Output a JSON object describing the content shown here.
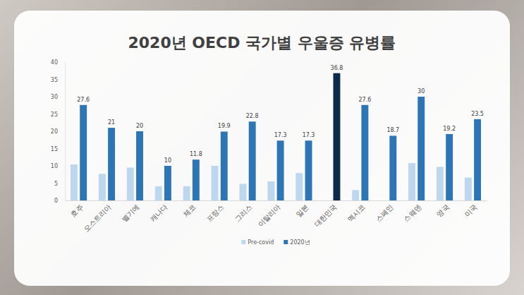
{
  "chart_data": {
    "type": "bar",
    "title": "2020년 OECD 국가별 우울증 유병률",
    "categories": [
      "호주",
      "오스트리아",
      "벨기에",
      "캐나다",
      "체코",
      "프랑스",
      "그리스",
      "이탈리아",
      "일본",
      "대한민국",
      "멕시코",
      "스페인",
      "스웨덴",
      "영국",
      "미국"
    ],
    "series": [
      {
        "name": "Pre-covid",
        "color": "#bdd7ee",
        "values": [
          10.4,
          7.7,
          9.5,
          4.1,
          4.1,
          10,
          4.8,
          5.5,
          7.9,
          null,
          3.0,
          null,
          10.8,
          9.7,
          6.6
        ]
      },
      {
        "name": "2020년",
        "color": "#2e75b6",
        "data_labels": true,
        "colors": [
          "#2e75b6",
          "#2e75b6",
          "#2e75b6",
          "#2e75b6",
          "#2e75b6",
          "#2e75b6",
          "#2e75b6",
          "#2e75b6",
          "#2e75b6",
          "#0d2a4a",
          "#2e75b6",
          "#2e75b6",
          "#2e75b6",
          "#2e75b6",
          "#2e75b6"
        ],
        "values": [
          27.6,
          21,
          20,
          10,
          11.8,
          19.9,
          22.8,
          17.3,
          17.3,
          36.8,
          27.6,
          18.7,
          30,
          19.2,
          23.5
        ]
      }
    ],
    "ylim": [
      0,
      40
    ],
    "yticks": [
      0,
      5,
      10,
      15,
      20,
      25,
      30,
      35,
      40
    ],
    "grid": false,
    "legend": "bottom"
  }
}
